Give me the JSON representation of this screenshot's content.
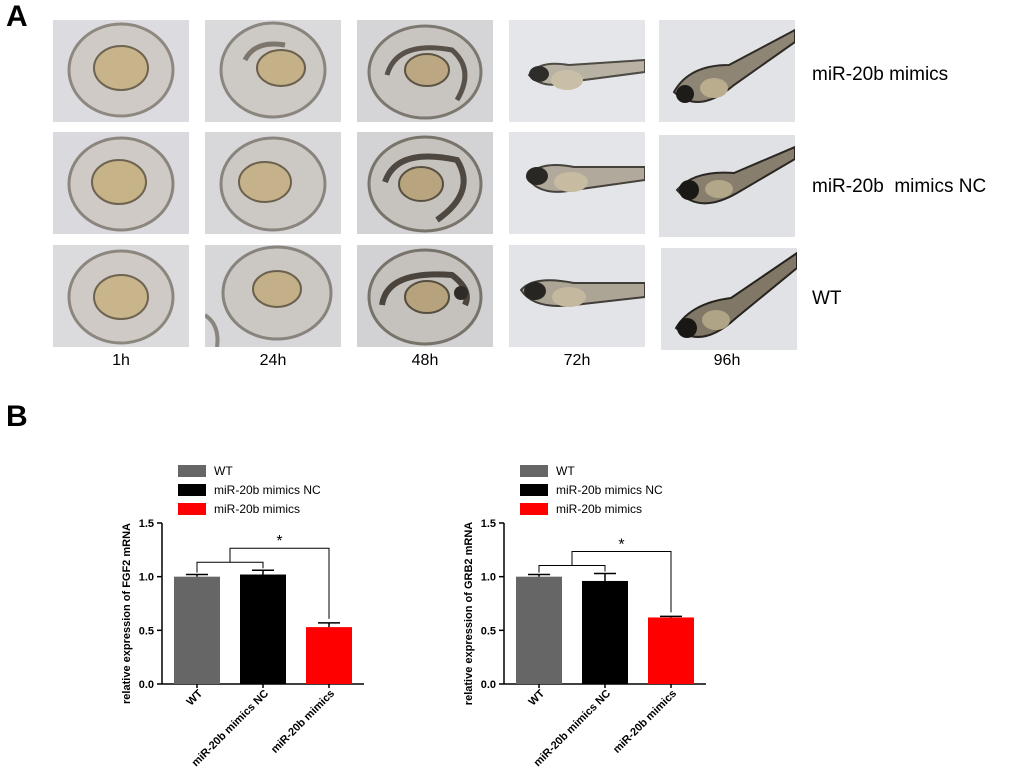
{
  "panel_a": {
    "label": "A",
    "time_points": [
      "1h",
      "24h",
      "48h",
      "72h",
      "96h"
    ],
    "rows": [
      "miR-20b mimics",
      "miR-20b  mimics NC",
      "WT"
    ]
  },
  "panel_b": {
    "label": "B"
  },
  "colors": {
    "wt": "#666666",
    "nc": "#000000",
    "mimics": "#ff0000"
  },
  "chart_data": [
    {
      "type": "bar",
      "ylabel": "relative expression of FGF2 mRNA",
      "categories": [
        "WT",
        "miR-20b mimics NC",
        "miR-20b mimics"
      ],
      "values": [
        1.0,
        1.02,
        0.53
      ],
      "errors": [
        0.02,
        0.04,
        0.04
      ],
      "legend": [
        "WT",
        "miR-20b mimics NC",
        "miR-20b mimics"
      ],
      "ylim": [
        0,
        1.5
      ],
      "yticks": [
        "0.0",
        "0.5",
        "1.0",
        "1.5"
      ],
      "annotation": "*"
    },
    {
      "type": "bar",
      "ylabel": "relative expression of GRB2 mRNA",
      "categories": [
        "WT",
        "miR-20b mimics NC",
        "miR-20b mimics"
      ],
      "values": [
        1.0,
        0.96,
        0.62
      ],
      "errors": [
        0.02,
        0.07,
        0.01
      ],
      "legend": [
        "WT",
        "miR-20b mimics NC",
        "miR-20b mimics"
      ],
      "ylim": [
        0,
        1.5
      ],
      "yticks": [
        "0.0",
        "0.5",
        "1.0",
        "1.5"
      ],
      "annotation": "*"
    }
  ]
}
